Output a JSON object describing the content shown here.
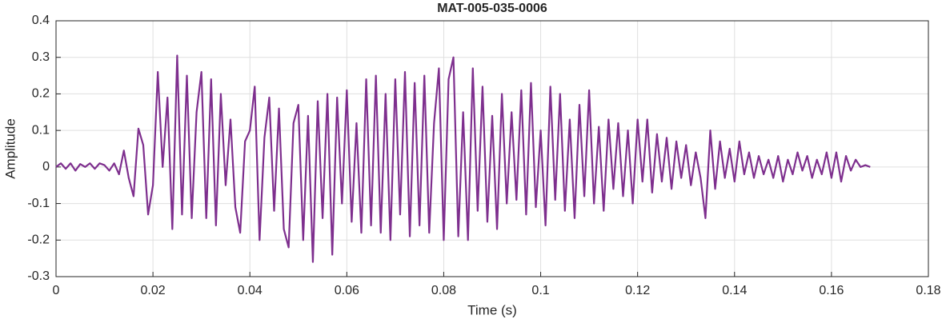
{
  "chart_data": {
    "type": "line",
    "title": "MAT-005-035-0006",
    "x_label": "Time (s)",
    "y_label": "Amplitude",
    "color": "#7e2f8e",
    "grid": true,
    "xlim": [
      0,
      0.18
    ],
    "xticks": [
      0,
      0.02,
      0.04,
      0.06,
      0.08,
      0.1,
      0.12,
      0.14,
      0.16,
      0.18
    ],
    "ylim": [
      -0.3,
      0.4
    ],
    "yticks": [
      -0.3,
      -0.2,
      -0.1,
      0,
      0.1,
      0.2,
      0.3,
      0.4
    ],
    "x": [
      0,
      0.001,
      0.002,
      0.003,
      0.004,
      0.005,
      0.006,
      0.007,
      0.008,
      0.009,
      0.01,
      0.011,
      0.012,
      0.013,
      0.014,
      0.015,
      0.016,
      0.017,
      0.018,
      0.019,
      0.02,
      0.021,
      0.022,
      0.023,
      0.024,
      0.025,
      0.026,
      0.027,
      0.028,
      0.029,
      0.03,
      0.031,
      0.032,
      0.033,
      0.034,
      0.035,
      0.036,
      0.037,
      0.038,
      0.039,
      0.04,
      0.041,
      0.042,
      0.043,
      0.044,
      0.045,
      0.046,
      0.047,
      0.048,
      0.049,
      0.05,
      0.051,
      0.052,
      0.053,
      0.054,
      0.055,
      0.056,
      0.057,
      0.058,
      0.059,
      0.06,
      0.061,
      0.062,
      0.063,
      0.064,
      0.065,
      0.066,
      0.067,
      0.068,
      0.069,
      0.07,
      0.071,
      0.072,
      0.073,
      0.074,
      0.075,
      0.076,
      0.077,
      0.078,
      0.079,
      0.08,
      0.081,
      0.082,
      0.083,
      0.084,
      0.085,
      0.086,
      0.087,
      0.088,
      0.089,
      0.09,
      0.091,
      0.092,
      0.093,
      0.094,
      0.095,
      0.096,
      0.097,
      0.098,
      0.099,
      0.1,
      0.101,
      0.102,
      0.103,
      0.104,
      0.105,
      0.106,
      0.107,
      0.108,
      0.109,
      0.11,
      0.111,
      0.112,
      0.113,
      0.114,
      0.115,
      0.116,
      0.117,
      0.118,
      0.119,
      0.12,
      0.121,
      0.122,
      0.123,
      0.124,
      0.125,
      0.126,
      0.127,
      0.128,
      0.129,
      0.13,
      0.131,
      0.132,
      0.133,
      0.134,
      0.135,
      0.136,
      0.137,
      0.138,
      0.139,
      0.14,
      0.141,
      0.142,
      0.143,
      0.144,
      0.145,
      0.146,
      0.147,
      0.148,
      0.149,
      0.15,
      0.151,
      0.152,
      0.153,
      0.154,
      0.155,
      0.156,
      0.157,
      0.158,
      0.159,
      0.16,
      0.161,
      0.162,
      0.163,
      0.164,
      0.165,
      0.166,
      0.167,
      0.168
    ],
    "values": [
      0,
      0.01,
      -0.005,
      0.01,
      -0.01,
      0.008,
      0,
      0.01,
      -0.005,
      0.01,
      0.005,
      -0.01,
      0.01,
      -0.02,
      0.045,
      -0.03,
      -0.08,
      0.105,
      0.06,
      -0.13,
      -0.05,
      0.26,
      0,
      0.19,
      -0.17,
      0.305,
      -0.13,
      0.25,
      -0.14,
      0.15,
      0.26,
      -0.14,
      0.24,
      -0.16,
      0.2,
      -0.05,
      0.13,
      -0.11,
      -0.18,
      0.07,
      0.1,
      0.22,
      -0.2,
      0.08,
      0.19,
      -0.12,
      0.16,
      -0.17,
      -0.22,
      0.12,
      0.17,
      -0.2,
      0.14,
      -0.26,
      0.18,
      -0.14,
      0.2,
      -0.24,
      0.19,
      -0.1,
      0.21,
      -0.15,
      0.12,
      -0.18,
      0.24,
      -0.16,
      0.25,
      -0.18,
      0.2,
      -0.2,
      0.24,
      -0.13,
      0.26,
      -0.19,
      0.23,
      -0.16,
      0.25,
      -0.18,
      0.12,
      0.27,
      -0.2,
      0.24,
      0.3,
      -0.19,
      0.15,
      -0.2,
      0.27,
      -0.12,
      0.22,
      -0.15,
      0.14,
      -0.17,
      0.2,
      -0.1,
      0.15,
      -0.09,
      0.21,
      -0.13,
      0.23,
      -0.11,
      0.1,
      -0.16,
      0.22,
      -0.09,
      0.2,
      -0.12,
      0.13,
      -0.14,
      0.17,
      -0.08,
      0.21,
      -0.1,
      0.11,
      -0.12,
      0.13,
      -0.06,
      0.12,
      -0.08,
      0.1,
      -0.1,
      0.13,
      -0.04,
      0.13,
      -0.07,
      0.09,
      -0.04,
      0.08,
      -0.06,
      0.07,
      -0.03,
      0.06,
      -0.05,
      0.04,
      -0.03,
      -0.14,
      0.1,
      -0.06,
      0.07,
      -0.03,
      0.05,
      -0.04,
      0.07,
      -0.02,
      0.04,
      -0.03,
      0.03,
      -0.02,
      0.02,
      -0.03,
      0.03,
      -0.04,
      0.02,
      -0.02,
      0.04,
      -0.01,
      0.03,
      -0.03,
      0.02,
      -0.02,
      0.04,
      -0.03,
      0.04,
      -0.04,
      0.03,
      -0.01,
      0.02,
      0,
      0.005,
      0
    ]
  }
}
